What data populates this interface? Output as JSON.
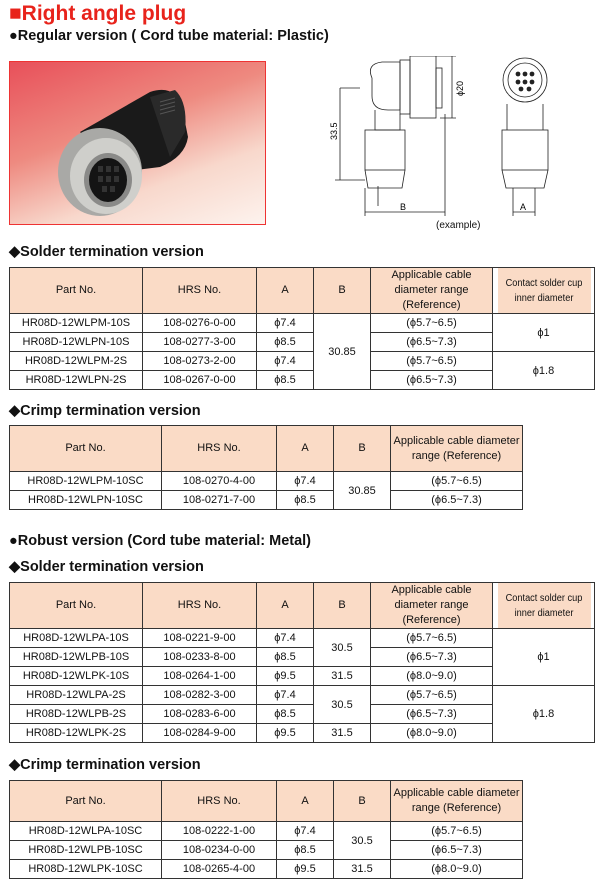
{
  "title": "■Right angle plug",
  "regular_heading": "●Regular version ( Cord tube material: Plastic)",
  "drawing": {
    "dim_height": "33.5",
    "dim_diameter": "ϕ20",
    "dim_b": "B",
    "dim_a": "A",
    "caption": "(example)"
  },
  "robust_heading": "●Robust version (Cord tube material: Metal)",
  "colors": {
    "title": "#e8231b",
    "header_bg": "#fadbc6",
    "photo_border": "#e33333"
  },
  "tables": [
    {
      "heading": "◆Solder termination version",
      "headers": [
        "Part No.",
        "HRS No.",
        "A",
        "B",
        "Applicable cable diameter range (Reference)",
        "Contact solder cup inner diameter"
      ],
      "rows": [
        [
          "HR08D-12WLPM-10S",
          "108-0276-0-00",
          "ϕ7.4",
          "30.85",
          "(ϕ5.7~6.5)",
          "ϕ1"
        ],
        [
          "HR08D-12WLPN-10S",
          "108-0277-3-00",
          "ϕ8.5",
          null,
          "(ϕ6.5~7.3)",
          null
        ],
        [
          "HR08D-12WLPM-2S",
          "108-0273-2-00",
          "ϕ7.4",
          null,
          "(ϕ5.7~6.5)",
          "ϕ1.8"
        ],
        [
          "HR08D-12WLPN-2S",
          "108-0267-0-00",
          "ϕ8.5",
          null,
          "(ϕ6.5~7.3)",
          null
        ]
      ]
    },
    {
      "heading": "◆Crimp termination version",
      "headers": [
        "Part No.",
        "HRS No.",
        "A",
        "B",
        "Applicable cable diameter range (Reference)"
      ],
      "rows": [
        [
          "HR08D-12WLPM-10SC",
          "108-0270-4-00",
          "ϕ7.4",
          "30.85",
          "(ϕ5.7~6.5)"
        ],
        [
          "HR08D-12WLPN-10SC",
          "108-0271-7-00",
          "ϕ8.5",
          null,
          "(ϕ6.5~7.3)"
        ]
      ]
    },
    {
      "heading": "◆Solder termination version",
      "headers": [
        "Part No.",
        "HRS No.",
        "A",
        "B",
        "Applicable cable diameter range (Reference)",
        "Contact solder cup inner diameter"
      ],
      "rows": [
        [
          "HR08D-12WLPA-10S",
          "108-0221-9-00",
          "ϕ7.4",
          "30.5",
          "(ϕ5.7~6.5)",
          "ϕ1"
        ],
        [
          "HR08D-12WLPB-10S",
          "108-0233-8-00",
          "ϕ8.5",
          null,
          "(ϕ6.5~7.3)",
          null
        ],
        [
          "HR08D-12WLPK-10S",
          "108-0264-1-00",
          "ϕ9.5",
          "31.5",
          "(ϕ8.0~9.0)",
          null
        ],
        [
          "HR08D-12WLPA-2S",
          "108-0282-3-00",
          "ϕ7.4",
          "30.5",
          "(ϕ5.7~6.5)",
          "ϕ1.8"
        ],
        [
          "HR08D-12WLPB-2S",
          "108-0283-6-00",
          "ϕ8.5",
          null,
          "(ϕ6.5~7.3)",
          null
        ],
        [
          "HR08D-12WLPK-2S",
          "108-0284-9-00",
          "ϕ9.5",
          "31.5",
          "(ϕ8.0~9.0)",
          null
        ]
      ]
    },
    {
      "heading": "◆Crimp termination version",
      "headers": [
        "Part No.",
        "HRS No.",
        "A",
        "B",
        "Applicable cable diameter range (Reference)"
      ],
      "rows": [
        [
          "HR08D-12WLPA-10SC",
          "108-0222-1-00",
          "ϕ7.4",
          "30.5",
          "(ϕ5.7~6.5)"
        ],
        [
          "HR08D-12WLPB-10SC",
          "108-0234-0-00",
          "ϕ8.5",
          null,
          "(ϕ6.5~7.3)"
        ],
        [
          "HR08D-12WLPK-10SC",
          "108-0265-4-00",
          "ϕ9.5",
          "31.5",
          "(ϕ8.0~9.0)"
        ]
      ]
    }
  ]
}
